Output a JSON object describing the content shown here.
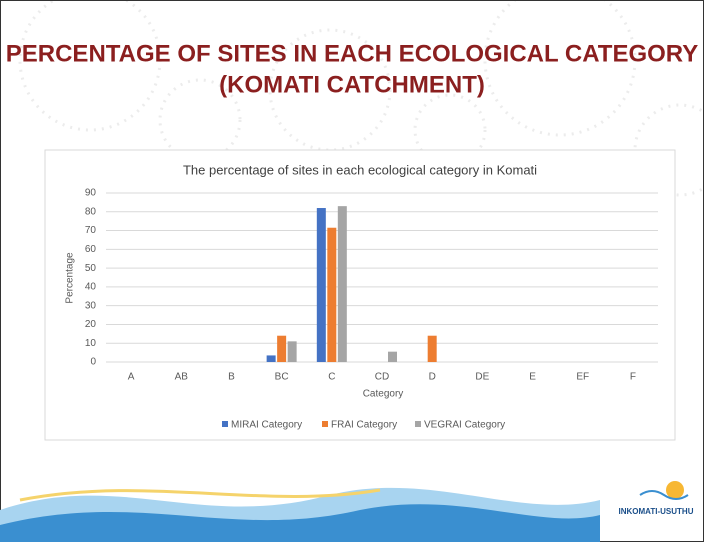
{
  "slide": {
    "title_lines": [
      "PERCENTAGE OF SITES IN EACH ECOLOGICAL CATEGORY",
      "(KOMATI CATCHMENT)"
    ],
    "logo": "INKOMATI-USUTHU"
  },
  "chart_data": {
    "type": "bar",
    "title": "The percentage of sites in each ecological category in Komati",
    "x_label": "Category",
    "y_label": "Percentage",
    "categories": [
      "A",
      "AB",
      "B",
      "BC",
      "C",
      "CD",
      "D",
      "DE",
      "E",
      "EF",
      "F"
    ],
    "series": [
      {
        "name": "MIRAI Category",
        "color": "#4472c4",
        "values": [
          0,
          0,
          0,
          3.5,
          82,
          0,
          0,
          0,
          0,
          0,
          0
        ]
      },
      {
        "name": "FRAI Category",
        "color": "#ed7d31",
        "values": [
          0,
          0,
          0,
          14,
          71.5,
          0,
          14,
          0,
          0,
          0,
          0
        ]
      },
      {
        "name": "VEGRAI Category",
        "color": "#a5a5a5",
        "values": [
          0,
          0,
          0,
          11,
          83,
          5.5,
          0,
          0,
          0,
          0,
          0
        ]
      }
    ],
    "ylim": [
      0,
      90
    ],
    "yticks": [
      0,
      10,
      20,
      30,
      40,
      50,
      60,
      70,
      80,
      90
    ],
    "grid": true,
    "legend": "bottom"
  }
}
